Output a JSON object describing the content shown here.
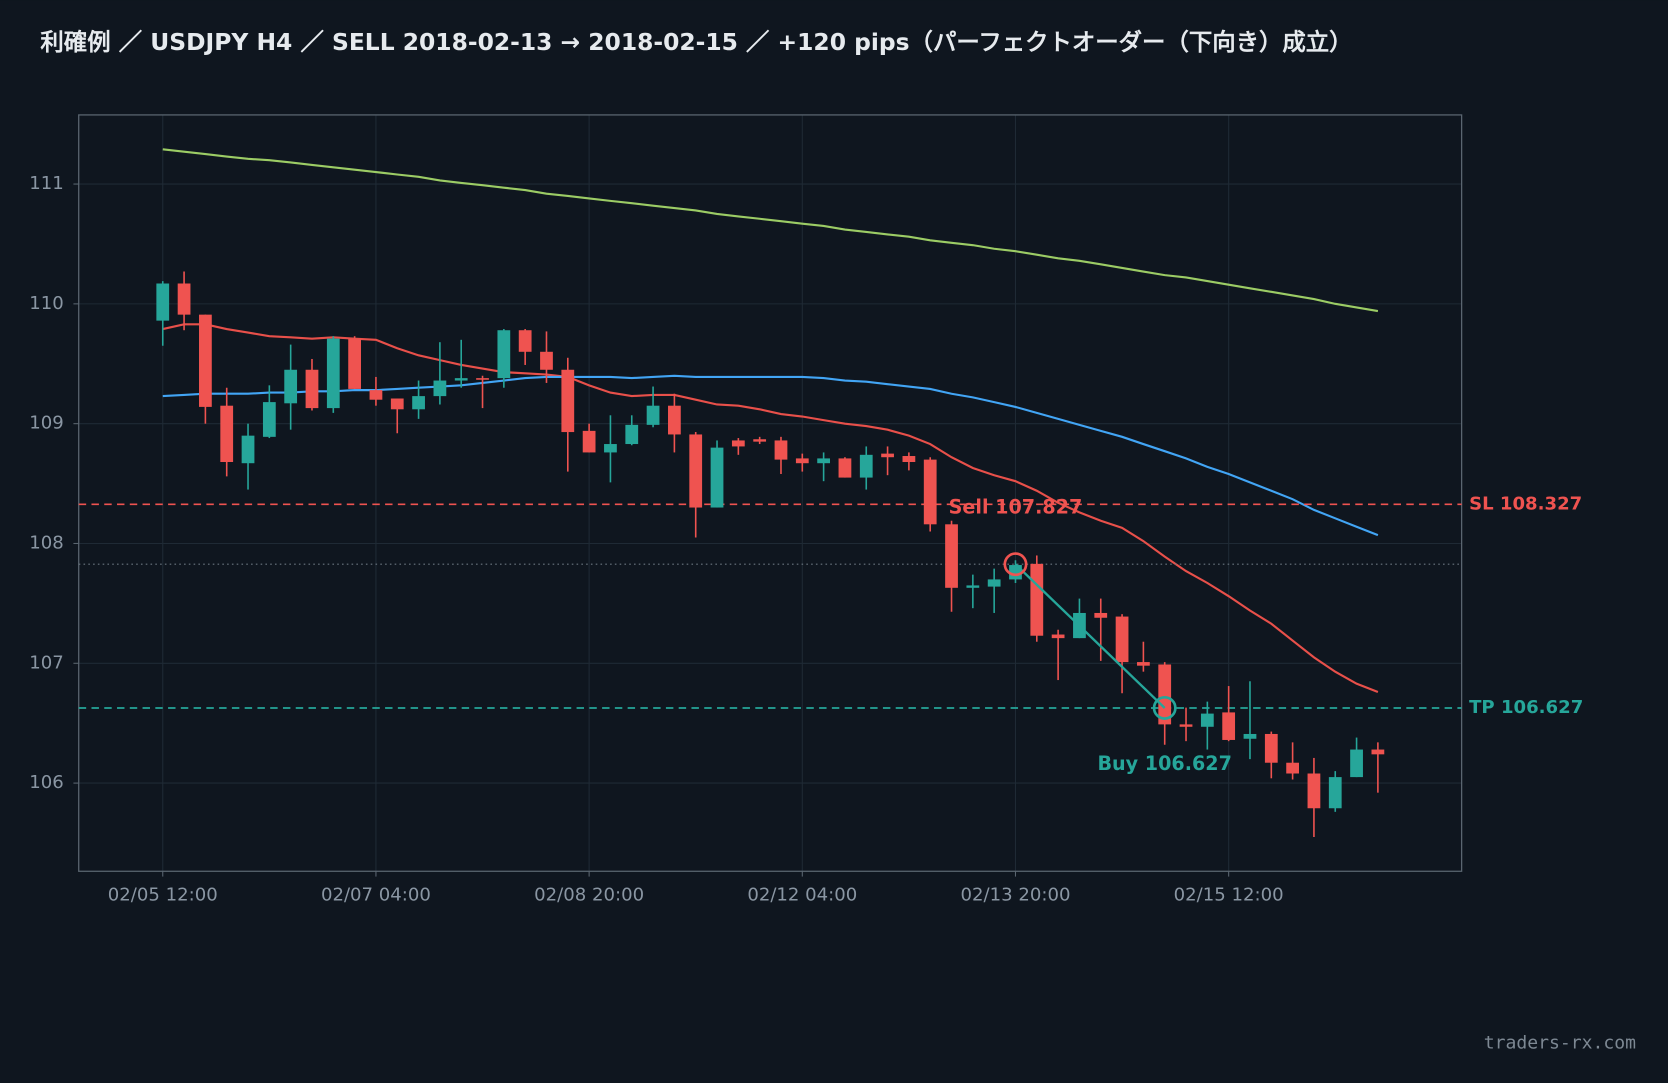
{
  "chart_data": {
    "type": "candlestick",
    "title": "利確例 ／ USDJPY H4 ／ SELL  2018-02-13 → 2018-02-15 ／ +120 pips（パーフェクトオーダー（下向き）成立）",
    "categories": [
      "02/05 12:00",
      null,
      null,
      null,
      null,
      null,
      null,
      null,
      null,
      null,
      "02/07 04:00",
      null,
      null,
      null,
      null,
      null,
      null,
      null,
      null,
      null,
      "02/08 20:00",
      null,
      null,
      null,
      null,
      null,
      null,
      null,
      null,
      null,
      "02/12 04:00",
      null,
      null,
      null,
      null,
      null,
      null,
      null,
      null,
      null,
      "02/13 20:00",
      null,
      null,
      null,
      null,
      null,
      null,
      null,
      null,
      null,
      "02/15 12:00",
      null,
      null,
      null,
      null,
      null,
      null,
      null
    ],
    "open": [
      109.86,
      110.17,
      109.91,
      109.15,
      108.67,
      108.89,
      109.17,
      109.45,
      109.13,
      109.71,
      109.28,
      109.21,
      109.12,
      109.23,
      109.36,
      109.38,
      109.38,
      109.78,
      109.6,
      109.45,
      108.94,
      108.76,
      108.83,
      108.99,
      109.15,
      108.91,
      108.3,
      108.86,
      108.87,
      108.86,
      108.71,
      108.67,
      108.71,
      108.55,
      108.75,
      108.73,
      108.7,
      108.16,
      107.63,
      107.64,
      107.7,
      107.83,
      107.24,
      107.21,
      107.42,
      107.39,
      107.01,
      106.99,
      106.49,
      106.47,
      106.59,
      106.37,
      106.41,
      106.17,
      106.08,
      105.79,
      106.05,
      106.28
    ],
    "high": [
      110.19,
      110.27,
      109.91,
      109.3,
      109.0,
      109.32,
      109.66,
      109.54,
      109.73,
      109.73,
      109.39,
      109.21,
      109.36,
      109.68,
      109.7,
      109.4,
      109.79,
      109.79,
      109.77,
      109.55,
      109.0,
      109.07,
      109.07,
      109.31,
      109.25,
      108.93,
      108.86,
      108.88,
      108.89,
      108.89,
      108.75,
      108.76,
      108.72,
      108.81,
      108.81,
      108.76,
      108.72,
      108.19,
      107.74,
      107.79,
      107.86,
      107.9,
      107.28,
      107.54,
      107.54,
      107.41,
      107.18,
      107.01,
      106.63,
      106.68,
      106.81,
      106.85,
      106.43,
      106.34,
      106.21,
      106.1,
      106.38,
      106.34
    ],
    "low": [
      109.65,
      109.78,
      109.0,
      108.56,
      108.45,
      108.88,
      108.95,
      109.11,
      109.09,
      109.29,
      109.15,
      108.92,
      109.04,
      109.16,
      109.3,
      109.13,
      109.3,
      109.49,
      109.34,
      108.6,
      108.76,
      108.51,
      108.82,
      108.97,
      108.76,
      108.05,
      108.3,
      108.74,
      108.83,
      108.58,
      108.6,
      108.52,
      108.55,
      108.45,
      108.57,
      108.61,
      108.1,
      107.43,
      107.46,
      107.42,
      107.67,
      107.18,
      106.86,
      107.21,
      107.02,
      106.75,
      106.93,
      106.32,
      106.35,
      106.28,
      106.35,
      106.2,
      106.04,
      106.03,
      105.55,
      105.76,
      106.05,
      105.92
    ],
    "close": [
      110.17,
      109.91,
      109.14,
      108.68,
      108.9,
      109.18,
      109.45,
      109.13,
      109.71,
      109.29,
      109.2,
      109.12,
      109.23,
      109.36,
      109.38,
      109.37,
      109.78,
      109.6,
      109.45,
      108.93,
      108.76,
      108.83,
      108.99,
      109.15,
      108.91,
      108.3,
      108.8,
      108.81,
      108.85,
      108.7,
      108.67,
      108.71,
      108.55,
      108.74,
      108.72,
      108.68,
      108.16,
      107.63,
      107.65,
      107.7,
      107.82,
      107.23,
      107.21,
      107.42,
      107.38,
      107.01,
      106.98,
      106.49,
      106.47,
      106.58,
      106.36,
      106.41,
      106.17,
      106.08,
      105.79,
      106.05,
      106.28,
      106.24
    ],
    "up_color": "#26a69a",
    "down_color": "#ef5350",
    "lines": [
      {
        "color": "#e8504a",
        "values": [
          109.79,
          109.83,
          109.83,
          109.79,
          109.76,
          109.73,
          109.72,
          109.71,
          109.72,
          109.71,
          109.7,
          109.63,
          109.57,
          109.53,
          109.49,
          109.46,
          109.43,
          109.42,
          109.41,
          109.39,
          109.32,
          109.26,
          109.23,
          109.24,
          109.24,
          109.2,
          109.16,
          109.15,
          109.12,
          109.08,
          109.06,
          109.03,
          109.0,
          108.98,
          108.95,
          108.9,
          108.83,
          108.72,
          108.63,
          108.57,
          108.52,
          108.44,
          108.34,
          108.26,
          108.19,
          108.13,
          108.02,
          107.89,
          107.77,
          107.67,
          107.56,
          107.44,
          107.33,
          107.19,
          107.05,
          106.93,
          106.83,
          106.76
        ]
      },
      {
        "color": "#42a5f5",
        "values": [
          109.23,
          109.24,
          109.25,
          109.25,
          109.25,
          109.26,
          109.26,
          109.27,
          109.27,
          109.28,
          109.28,
          109.29,
          109.3,
          109.31,
          109.32,
          109.34,
          109.36,
          109.38,
          109.39,
          109.39,
          109.39,
          109.39,
          109.38,
          109.39,
          109.4,
          109.39,
          109.39,
          109.39,
          109.39,
          109.39,
          109.39,
          109.38,
          109.36,
          109.35,
          109.33,
          109.31,
          109.29,
          109.25,
          109.22,
          109.18,
          109.14,
          109.09,
          109.04,
          108.99,
          108.94,
          108.89,
          108.83,
          108.77,
          108.71,
          108.64,
          108.58,
          108.51,
          108.44,
          108.37,
          108.28,
          108.21,
          108.14,
          108.07
        ]
      },
      {
        "color": "#9ccc65",
        "values": [
          111.29,
          111.27,
          111.25,
          111.23,
          111.21,
          111.2,
          111.18,
          111.16,
          111.14,
          111.12,
          111.1,
          111.08,
          111.06,
          111.03,
          111.01,
          110.99,
          110.97,
          110.95,
          110.92,
          110.9,
          110.88,
          110.86,
          110.84,
          110.82,
          110.8,
          110.78,
          110.75,
          110.73,
          110.71,
          110.69,
          110.67,
          110.65,
          110.62,
          110.6,
          110.58,
          110.56,
          110.53,
          110.51,
          110.49,
          110.46,
          110.44,
          110.41,
          110.38,
          110.36,
          110.33,
          110.3,
          110.27,
          110.24,
          110.22,
          110.19,
          110.16,
          110.13,
          110.1,
          110.07,
          110.04,
          110.0,
          109.97,
          109.94
        ]
      }
    ],
    "levels": [
      {
        "label": "SL 108.327",
        "value": 108.327,
        "color": "#ef5350"
      },
      {
        "label": "TP 106.627",
        "value": 106.627,
        "color": "#26a69a"
      }
    ],
    "trade": {
      "line_color": "#26a69a",
      "entry": {
        "label": "Sell 107.827",
        "value": 107.827,
        "x": 40,
        "color": "#ef5350"
      },
      "exit": {
        "label": "Buy 106.627",
        "value": 106.627,
        "x": 47,
        "color": "#26a69a"
      }
    },
    "ylim": [
      105.264,
      111.577
    ],
    "yticks": [
      106,
      107,
      108,
      109,
      110,
      111
    ],
    "grid": true
  },
  "footer": "traders-rx.com"
}
